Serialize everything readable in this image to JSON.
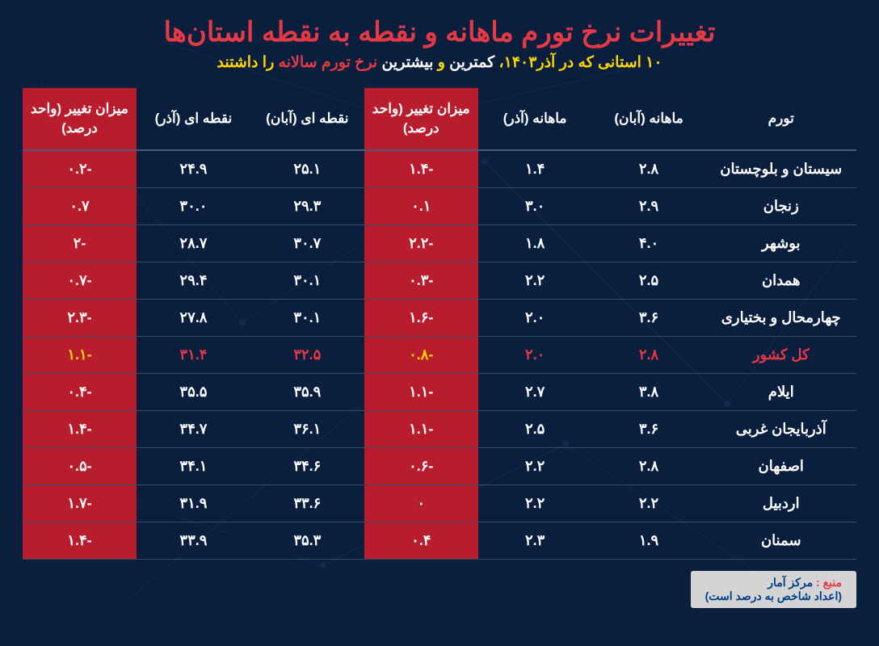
{
  "title": "تغییرات نرخ تورم ماهانه و نقطه به نقطه استان‌ها",
  "subtitle": {
    "part1": "۱۰ استانی که در آذر۱۴۰۳،",
    "part2": "کمترین",
    "part3": "و",
    "part4": "بیشترین",
    "part5": "نرخ تورم سالانه",
    "part6": "را داشتند"
  },
  "headers": {
    "province": "تورم",
    "monthly_aban": "ماهانه (آبان)",
    "monthly_azar": "ماهانه (آذر)",
    "monthly_change": "میزان تغییر (واحد درصد)",
    "point_aban": "نقطه ای (آبان)",
    "point_azar": "نقطه ای (آذر)",
    "point_change": "میزان تغییر (واحد درصد)"
  },
  "rows": [
    {
      "province": "سیستان و بلوچستان",
      "m_aban": "۲.۸",
      "m_azar": "۱.۴",
      "m_chg": "-۱.۴",
      "p_aban": "۲۵.۱",
      "p_azar": "۲۴.۹",
      "p_chg": "-۰.۲",
      "national": false
    },
    {
      "province": "زنجان",
      "m_aban": "۲.۹",
      "m_azar": "۳.۰",
      "m_chg": "۰.۱",
      "p_aban": "۲۹.۳",
      "p_azar": "۳۰.۰",
      "p_chg": "۰.۷",
      "national": false
    },
    {
      "province": "بوشهر",
      "m_aban": "۴.۰",
      "m_azar": "۱.۸",
      "m_chg": "-۲.۲",
      "p_aban": "۳۰.۷",
      "p_azar": "۲۸.۷",
      "p_chg": "-۲",
      "national": false
    },
    {
      "province": "همدان",
      "m_aban": "۲.۵",
      "m_azar": "۲.۲",
      "m_chg": "-۰.۳",
      "p_aban": "۳۰.۱",
      "p_azar": "۲۹.۴",
      "p_chg": "-۰.۷",
      "national": false
    },
    {
      "province": "چهارمحال و بختیاری",
      "m_aban": "۳.۶",
      "m_azar": "۲.۰",
      "m_chg": "-۱.۶",
      "p_aban": "۳۰.۱",
      "p_azar": "۲۷.۸",
      "p_chg": "-۲.۳",
      "national": false
    },
    {
      "province": "کل کشور",
      "m_aban": "۲.۸",
      "m_azar": "۲.۰",
      "m_chg": "-۰.۸",
      "p_aban": "۳۲.۵",
      "p_azar": "۳۱.۴",
      "p_chg": "-۱.۱",
      "national": true
    },
    {
      "province": "ایلام",
      "m_aban": "۳.۸",
      "m_azar": "۲.۷",
      "m_chg": "-۱.۱",
      "p_aban": "۳۵.۹",
      "p_azar": "۳۵.۵",
      "p_chg": "-۰.۴",
      "national": false
    },
    {
      "province": "آذربایجان غربی",
      "m_aban": "۳.۶",
      "m_azar": "۲.۵",
      "m_chg": "-۱.۱",
      "p_aban": "۳۶.۱",
      "p_azar": "۳۴.۷",
      "p_chg": "-۱.۴",
      "national": false
    },
    {
      "province": "اصفهان",
      "m_aban": "۲.۸",
      "m_azar": "۲.۲",
      "m_chg": "-۰.۶",
      "p_aban": "۳۴.۶",
      "p_azar": "۳۴.۱",
      "p_chg": "-۰.۵",
      "national": false
    },
    {
      "province": "اردبیل",
      "m_aban": "۲.۲",
      "m_azar": "۲.۲",
      "m_chg": "۰",
      "p_aban": "۳۳.۶",
      "p_azar": "۳۱.۹",
      "p_chg": "-۱.۷",
      "national": false
    },
    {
      "province": "سمنان",
      "m_aban": "۱.۹",
      "m_azar": "۲.۳",
      "m_chg": "۰.۴",
      "p_aban": "۳۵.۳",
      "p_azar": "۳۳.۹",
      "p_chg": "-۱.۴",
      "national": false
    }
  ],
  "footer": {
    "source_label": "منبع :",
    "source_name": "مرکز آمار",
    "note": "(اعداد شاخص به درصد است)"
  },
  "colors": {
    "bg": "#0a1e3d",
    "red": "#b91c2c",
    "title_red": "#e63946",
    "yellow": "#ffd700",
    "white": "#ffffff"
  }
}
